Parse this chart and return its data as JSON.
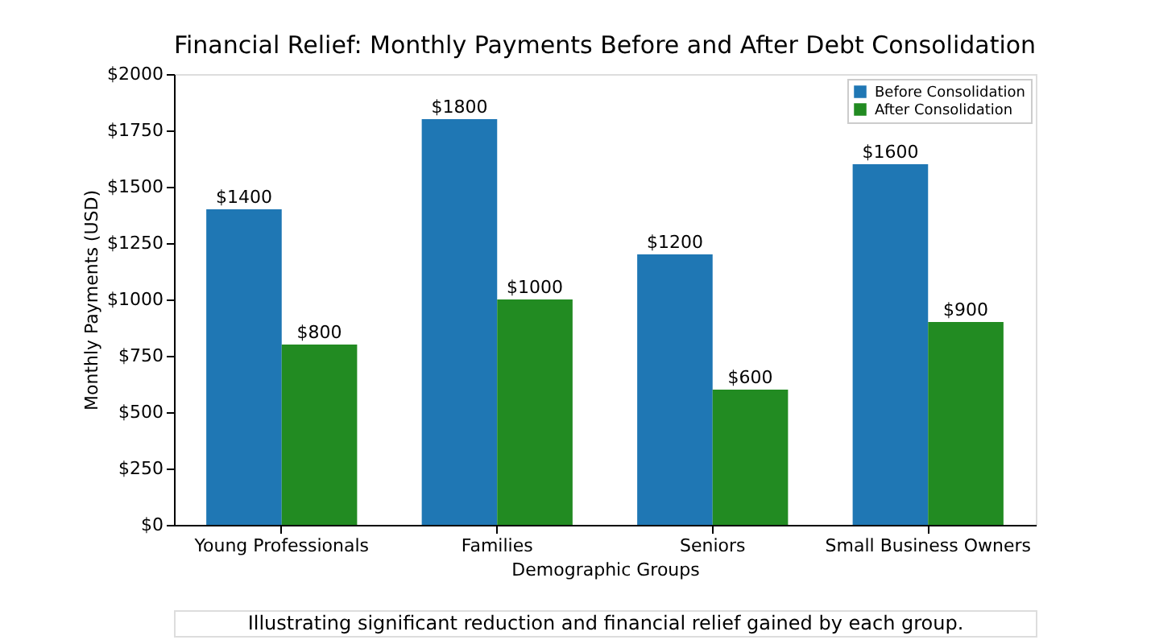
{
  "chart_data": {
    "type": "bar",
    "title": "Financial Relief: Monthly Payments Before and After Debt Consolidation",
    "xlabel": "Demographic Groups",
    "ylabel": "Monthly Payments (USD)",
    "categories": [
      "Young Professionals",
      "Families",
      "Seniors",
      "Small Business Owners"
    ],
    "series": [
      {
        "name": "Before Consolidation",
        "color": "#1f77b4",
        "values": [
          1400,
          1800,
          1200,
          1600
        ],
        "value_labels": [
          "$1400",
          "$1800",
          "$1200",
          "$1600"
        ]
      },
      {
        "name": "After Consolidation",
        "color": "#228b22",
        "values": [
          800,
          1000,
          600,
          900
        ],
        "value_labels": [
          "$800",
          "$1000",
          "$600",
          "$900"
        ]
      }
    ],
    "ylim": [
      0,
      2000
    ],
    "yticks": [
      {
        "value": 0,
        "label": "$0"
      },
      {
        "value": 250,
        "label": "$250"
      },
      {
        "value": 500,
        "label": "$500"
      },
      {
        "value": 750,
        "label": "$750"
      },
      {
        "value": 1000,
        "label": "$1000"
      },
      {
        "value": 1250,
        "label": "$1250"
      },
      {
        "value": 1500,
        "label": "$1500"
      },
      {
        "value": 1750,
        "label": "$1750"
      },
      {
        "value": 2000,
        "label": "$2000"
      }
    ],
    "grid": false,
    "legend": "top right",
    "annotations": [
      "Illustrating significant reduction and financial relief gained by each group."
    ]
  }
}
